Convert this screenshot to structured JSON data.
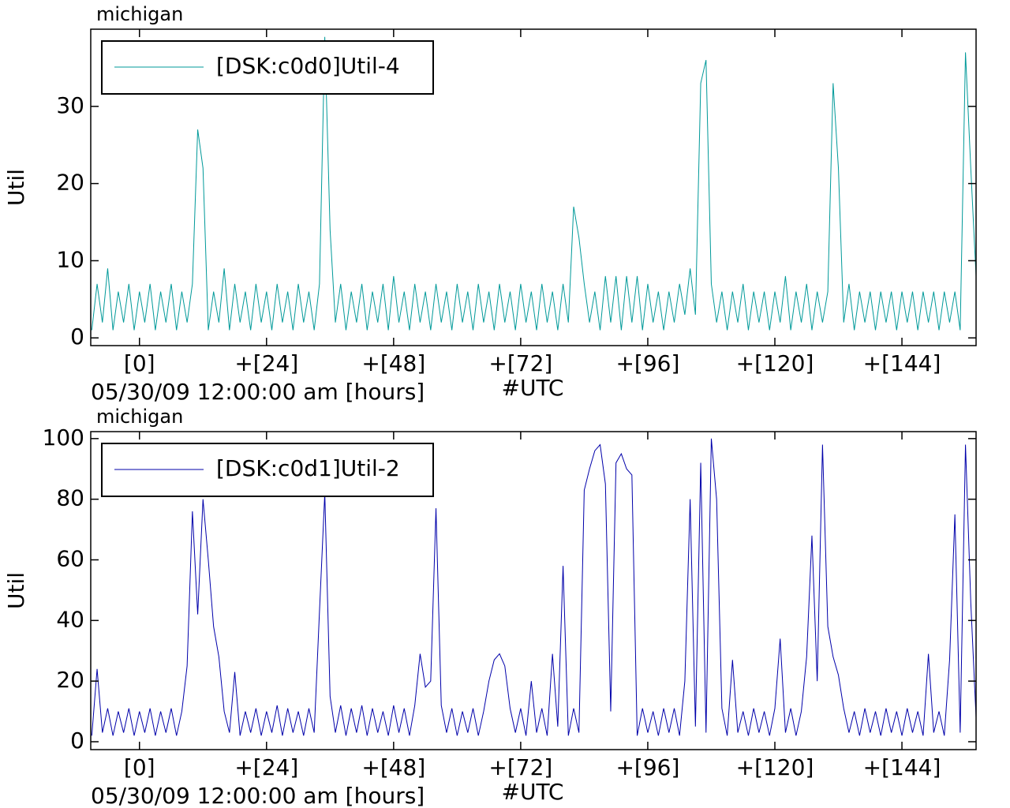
{
  "chart_data": [
    {
      "type": "line",
      "title": "michigan",
      "ylabel": "Util",
      "xlabel": "05/30/09 12:00:00 am [hours]",
      "timezone": "#UTC",
      "legend": "upper left",
      "xlim": [
        -9.2,
        158
      ],
      "ylim": [
        -1,
        40
      ],
      "xticks": [
        {
          "value": 0,
          "label": "[0]"
        },
        {
          "value": 24,
          "label": "+[24]"
        },
        {
          "value": 48,
          "label": "+[48]"
        },
        {
          "value": 72,
          "label": "+[72]"
        },
        {
          "value": 96,
          "label": "+[96]"
        },
        {
          "value": 120,
          "label": "+[120]"
        },
        {
          "value": 144,
          "label": "+[144]"
        }
      ],
      "yticks": [
        0,
        10,
        20,
        30
      ],
      "x": [
        -9,
        -8,
        -7,
        -6,
        -5,
        -4,
        -3,
        -2,
        -1,
        0,
        1,
        2,
        3,
        4,
        5,
        6,
        7,
        8,
        9,
        10,
        11,
        12,
        13,
        14,
        15,
        16,
        17,
        18,
        19,
        20,
        21,
        22,
        23,
        24,
        25,
        26,
        27,
        28,
        29,
        30,
        31,
        32,
        33,
        34,
        35,
        36,
        37,
        38,
        39,
        40,
        41,
        42,
        43,
        44,
        45,
        46,
        47,
        48,
        49,
        50,
        51,
        52,
        53,
        54,
        55,
        56,
        57,
        58,
        59,
        60,
        61,
        62,
        63,
        64,
        65,
        66,
        67,
        68,
        69,
        70,
        71,
        72,
        73,
        74,
        75,
        76,
        77,
        78,
        79,
        80,
        81,
        82,
        83,
        84,
        85,
        86,
        87,
        88,
        89,
        90,
        91,
        92,
        93,
        94,
        95,
        96,
        97,
        98,
        99,
        100,
        101,
        102,
        103,
        104,
        105,
        106,
        107,
        108,
        109,
        110,
        111,
        112,
        113,
        114,
        115,
        116,
        117,
        118,
        119,
        120,
        121,
        122,
        123,
        124,
        125,
        126,
        127,
        128,
        129,
        130,
        131,
        132,
        133,
        134,
        135,
        136,
        137,
        138,
        139,
        140,
        141,
        142,
        143,
        144,
        145,
        146,
        147,
        148,
        149,
        150,
        151,
        152,
        153,
        154,
        155,
        156,
        157,
        158
      ],
      "series": [
        {
          "name": "[DSK:c0d0]Util-4",
          "color": "#009999",
          "values": [
            1,
            7,
            2,
            9,
            1,
            6,
            2,
            7,
            1,
            6,
            2,
            7,
            1,
            6,
            2,
            7,
            1,
            6,
            2,
            7,
            27,
            22,
            1,
            6,
            2,
            9,
            1,
            7,
            2,
            6,
            1,
            7,
            2,
            6,
            1,
            7,
            2,
            6,
            1,
            7,
            2,
            6,
            1,
            7,
            39,
            14,
            2,
            7,
            1,
            6,
            2,
            7,
            1,
            6,
            2,
            7,
            1,
            8,
            2,
            6,
            1,
            7,
            2,
            6,
            1,
            7,
            2,
            6,
            1,
            7,
            2,
            6,
            1,
            7,
            2,
            6,
            1,
            7,
            2,
            6,
            1,
            7,
            2,
            6,
            1,
            7,
            2,
            6,
            1,
            7,
            2,
            17,
            13,
            7,
            2,
            6,
            1,
            8,
            2,
            8,
            1,
            8,
            2,
            8,
            1,
            7,
            2,
            6,
            1,
            6,
            2,
            7,
            3,
            9,
            3,
            33,
            36,
            7,
            2,
            6,
            1,
            6,
            2,
            7,
            1,
            6,
            2,
            6,
            1,
            6,
            2,
            8,
            1,
            6,
            2,
            7,
            1,
            6,
            2,
            6,
            33,
            22,
            2,
            7,
            1,
            6,
            2,
            6,
            1,
            6,
            2,
            6,
            1,
            6,
            2,
            6,
            1,
            6,
            2,
            6,
            1,
            6,
            2,
            6,
            1,
            37,
            22,
            8
          ]
        }
      ]
    },
    {
      "type": "line",
      "title": "michigan",
      "ylabel": "Util",
      "xlabel": "05/30/09 12:00:00 am [hours]",
      "timezone": "#UTC",
      "legend": "upper left",
      "xlim": [
        -9.2,
        158
      ],
      "ylim": [
        -2.6,
        102.3
      ],
      "xticks": [
        {
          "value": 0,
          "label": "[0]"
        },
        {
          "value": 24,
          "label": "+[24]"
        },
        {
          "value": 48,
          "label": "+[48]"
        },
        {
          "value": 72,
          "label": "+[72]"
        },
        {
          "value": 96,
          "label": "+[96]"
        },
        {
          "value": 120,
          "label": "+[120]"
        },
        {
          "value": 144,
          "label": "+[144]"
        }
      ],
      "yticks": [
        0,
        20,
        40,
        60,
        80,
        100
      ],
      "x": [
        -9,
        -8,
        -7,
        -6,
        -5,
        -4,
        -3,
        -2,
        -1,
        0,
        1,
        2,
        3,
        4,
        5,
        6,
        7,
        8,
        9,
        10,
        11,
        12,
        13,
        14,
        15,
        16,
        17,
        18,
        19,
        20,
        21,
        22,
        23,
        24,
        25,
        26,
        27,
        28,
        29,
        30,
        31,
        32,
        33,
        34,
        35,
        36,
        37,
        38,
        39,
        40,
        41,
        42,
        43,
        44,
        45,
        46,
        47,
        48,
        49,
        50,
        51,
        52,
        53,
        54,
        55,
        56,
        57,
        58,
        59,
        60,
        61,
        62,
        63,
        64,
        65,
        66,
        67,
        68,
        69,
        70,
        71,
        72,
        73,
        74,
        75,
        76,
        77,
        78,
        79,
        80,
        81,
        82,
        83,
        84,
        85,
        86,
        87,
        88,
        89,
        90,
        91,
        92,
        93,
        94,
        95,
        96,
        97,
        98,
        99,
        100,
        101,
        102,
        103,
        104,
        105,
        106,
        107,
        108,
        109,
        110,
        111,
        112,
        113,
        114,
        115,
        116,
        117,
        118,
        119,
        120,
        121,
        122,
        123,
        124,
        125,
        126,
        127,
        128,
        129,
        130,
        131,
        132,
        133,
        134,
        135,
        136,
        137,
        138,
        139,
        140,
        141,
        142,
        143,
        144,
        145,
        146,
        147,
        148,
        149,
        150,
        151,
        152,
        153,
        154,
        155,
        156,
        157,
        158
      ],
      "series": [
        {
          "name": "[DSK:c0d1]Util-2",
          "color": "#0000aa",
          "values": [
            2,
            24,
            3,
            11,
            2,
            10,
            3,
            11,
            2,
            10,
            3,
            11,
            2,
            10,
            3,
            11,
            2,
            10,
            25,
            76,
            42,
            80,
            60,
            38,
            28,
            10,
            3,
            23,
            2,
            10,
            3,
            11,
            2,
            10,
            3,
            12,
            2,
            11,
            3,
            10,
            2,
            11,
            3,
            43,
            82,
            15,
            3,
            12,
            2,
            11,
            3,
            12,
            2,
            11,
            3,
            10,
            2,
            12,
            3,
            11,
            2,
            12,
            29,
            18,
            20,
            77,
            12,
            3,
            11,
            2,
            10,
            3,
            11,
            2,
            10,
            20,
            27,
            29,
            25,
            11,
            3,
            11,
            2,
            20,
            3,
            11,
            2,
            29,
            5,
            58,
            2,
            11,
            3,
            83,
            90,
            96,
            98,
            85,
            10,
            92,
            95,
            90,
            88,
            2,
            11,
            3,
            10,
            2,
            11,
            3,
            11,
            2,
            20,
            80,
            5,
            92,
            3,
            100,
            80,
            11,
            2,
            27,
            3,
            10,
            2,
            11,
            3,
            10,
            2,
            11,
            34,
            3,
            11,
            2,
            10,
            28,
            68,
            20,
            98,
            38,
            28,
            22,
            11,
            3,
            10,
            2,
            11,
            3,
            10,
            2,
            11,
            3,
            10,
            2,
            11,
            3,
            10,
            2,
            29,
            3,
            10,
            2,
            27,
            75,
            3,
            98,
            46,
            8
          ]
        }
      ]
    }
  ]
}
